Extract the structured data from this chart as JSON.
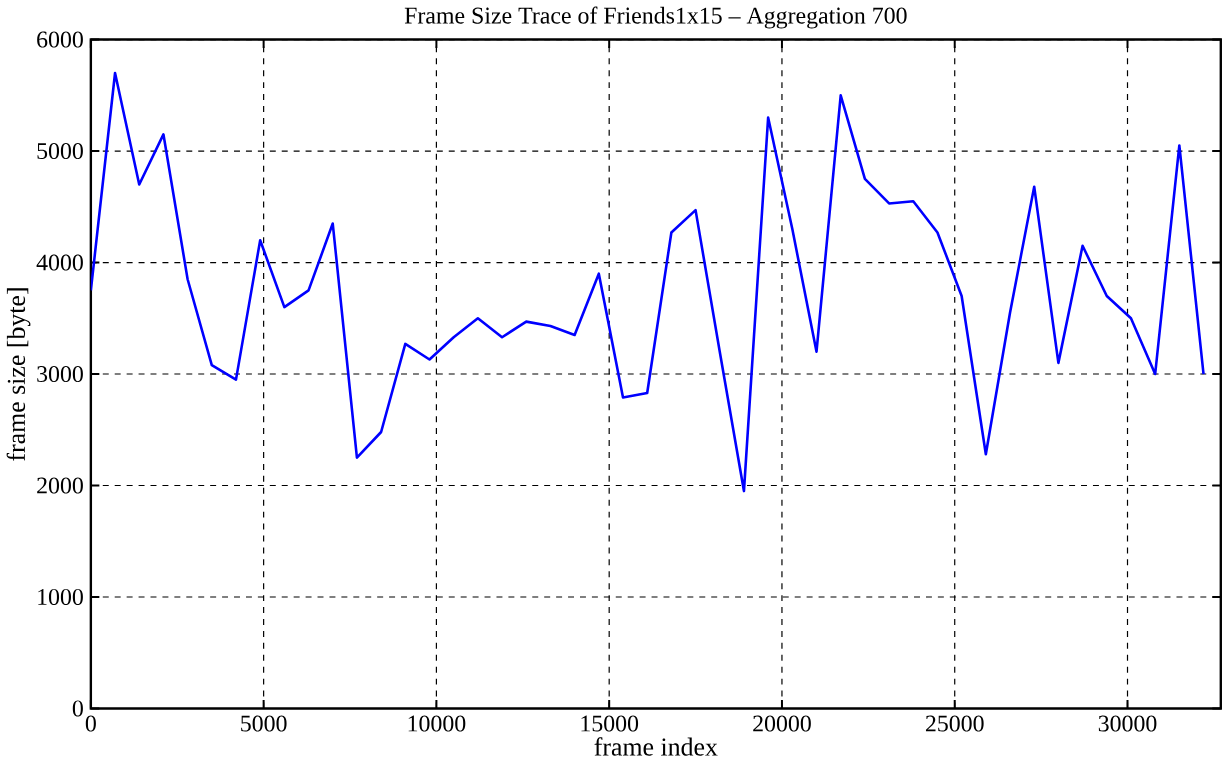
{
  "chart_data": {
    "type": "line",
    "title": "Frame Size Trace of Friends1x15 – Aggregation 700",
    "xlabel": "frame index",
    "ylabel": "frame size [byte]",
    "x": [
      0,
      700,
      1400,
      2100,
      2800,
      3500,
      4200,
      4900,
      5600,
      6300,
      7000,
      7700,
      8400,
      9100,
      9800,
      10500,
      11200,
      11900,
      12600,
      13300,
      14000,
      14700,
      15400,
      16100,
      16800,
      17500,
      18200,
      18900,
      19600,
      20300,
      21000,
      21700,
      22400,
      23100,
      23800,
      24500,
      25200,
      25900,
      26600,
      27300,
      28000,
      28700,
      29400,
      30100,
      30800,
      31500,
      32200
    ],
    "series": [
      {
        "color": "#0000ff",
        "values": [
          3750,
          5700,
          4700,
          5150,
          3850,
          3080,
          2950,
          4200,
          3600,
          3750,
          4350,
          2250,
          2480,
          3270,
          3130,
          3330,
          3500,
          3330,
          3470,
          3430,
          3350,
          3900,
          2790,
          2830,
          4270,
          4470,
          3200,
          1950,
          5300,
          4300,
          3200,
          5500,
          4750,
          4530,
          4550,
          4270,
          3700,
          2280,
          3550,
          4680,
          3100,
          4150,
          3700,
          3500,
          3000,
          5050,
          3000
        ]
      }
    ],
    "xlim": [
      0,
      32700
    ],
    "ylim": [
      0,
      6000
    ],
    "xticks": [
      0,
      5000,
      10000,
      15000,
      20000,
      25000,
      30000
    ],
    "yticks": [
      0,
      1000,
      2000,
      3000,
      4000,
      5000,
      6000
    ],
    "grid": true,
    "line_style": "solid",
    "marker": "none"
  }
}
